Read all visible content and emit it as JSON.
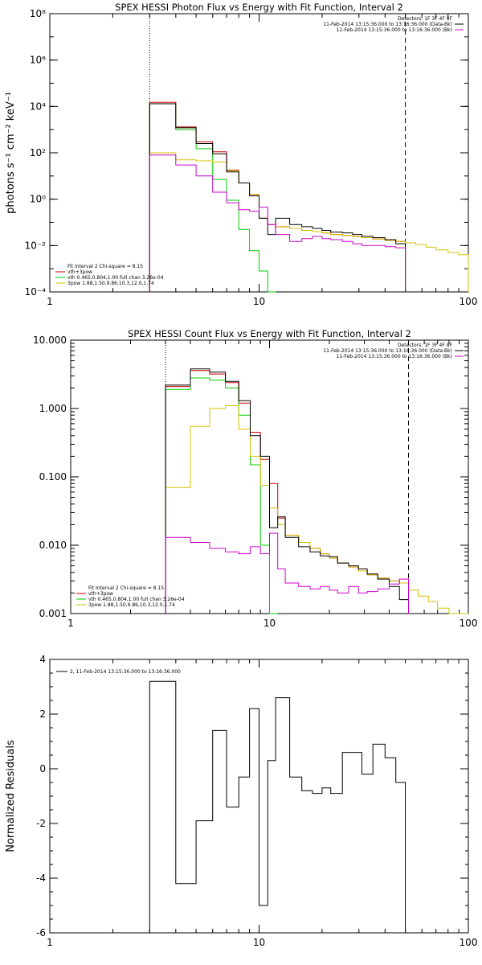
{
  "chart_data": [
    {
      "type": "line",
      "title": "SPEX HESSI Photon Flux vs Energy with Fit Function, Interval 2",
      "xlabel": "",
      "ylabel": "photons s⁻¹ cm⁻² keV⁻¹",
      "xscale": "log",
      "yscale": "log",
      "xlim": [
        1,
        100
      ],
      "ylim": [
        0.0001,
        100000000
      ],
      "x_ticks": [
        1,
        10,
        100
      ],
      "x_tick_labels": [
        "1",
        "10",
        "100"
      ],
      "y_ticks": [
        0.0001,
        0.01,
        1,
        100,
        10000,
        1000000,
        100000000
      ],
      "y_tick_labels": [
        "10⁻⁴",
        "10⁻²",
        "10⁰",
        "10²",
        "10⁴",
        "10⁶",
        "10⁸"
      ],
      "vlines": [
        {
          "x": 3,
          "style": "dotted"
        },
        {
          "x": 50,
          "style": "dashed"
        }
      ],
      "legend_topright": [
        "Detectors: 1F 3F 4F 8F",
        "11-Feb-2014 13:15:36.000 to 13:16:36.000 (Data-Bk)",
        "11-Feb-2014 13:15:36.000 to 13:16:36.000 (Bk)"
      ],
      "legend_bottomleft": [
        "Fit Interval 2   Chi-square = 8.15",
        "vth+3pow",
        "vth 0.465,0.804,1.00  full chan 3.26e-04",
        "3pow 1.88,1.50,9.86,10.3,12.0,1.74"
      ],
      "edges": [
        3,
        4,
        5,
        6,
        7,
        8,
        9,
        10,
        11,
        12,
        14,
        16,
        18,
        20,
        22,
        25,
        28,
        31,
        35,
        40,
        45,
        50,
        56,
        63,
        70,
        80,
        90,
        100
      ],
      "series": [
        {
          "name": "vth+3pow",
          "color": "#cc0000",
          "values": [
            15000,
            1300,
            300,
            110,
            18,
            5,
            1.6,
            0.15,
            0.08,
            0.065,
            0.055,
            0.045,
            0.04,
            0.035,
            0.03,
            0.027,
            0.024,
            0.022,
            0.019,
            0.017,
            0.015
          ]
        },
        {
          "name": "vth 0.465,0.804,1.00  full chan 3.26e-04",
          "color": "#00cc00",
          "values": [
            13000,
            1000,
            150,
            7,
            0.9,
            0.05,
            0.006,
            0.0008,
            0.0001
          ]
        },
        {
          "name": "3pow 1.88,1.50,9.86,10.3,12.0,1.74",
          "color": "#d4c000",
          "values": [
            100,
            50,
            45,
            40,
            17,
            5,
            1.6,
            0.15,
            0.08,
            0.065,
            0.055,
            0.045,
            0.04,
            0.035,
            0.03,
            0.027,
            0.024,
            0.022,
            0.019,
            0.017,
            0.015,
            0.013,
            0.011,
            0.0085,
            0.0065,
            0.005,
            0.004
          ]
        },
        {
          "name": "11-Feb-2014 13:15:36.000 to 13:16:36.000 (Data-Bk)",
          "color": "#000000",
          "values": [
            13000,
            1200,
            250,
            90,
            15,
            5,
            1.4,
            0.15,
            0.03,
            0.15,
            0.08,
            0.065,
            0.055,
            0.045,
            0.038,
            0.035,
            0.03,
            0.025,
            0.022,
            0.018,
            0.012
          ]
        },
        {
          "name": "11-Feb-2014 13:15:36.000 to 13:16:36.000 (Bk)",
          "color": "#cc00cc",
          "values": [
            80,
            30,
            10,
            2,
            0.7,
            0.35,
            0.3,
            0.45,
            0.08,
            0.03,
            0.015,
            0.02,
            0.025,
            0.02,
            0.018,
            0.015,
            0.012,
            0.01,
            0.01,
            0.009,
            0.008
          ]
        }
      ]
    },
    {
      "type": "line",
      "title": "SPEX HESSI Count Flux vs Energy with Fit Function, Interval 2",
      "xlabel": "",
      "ylabel": "",
      "xscale": "log",
      "yscale": "log",
      "xlim": [
        1,
        100
      ],
      "ylim": [
        0.001,
        10
      ],
      "x_ticks": [
        1,
        10,
        100
      ],
      "x_tick_labels": [
        "1",
        "10",
        "100"
      ],
      "y_ticks": [
        0.001,
        0.01,
        0.1,
        1,
        10
      ],
      "y_tick_labels": [
        "0.001",
        "0.010",
        "0.100",
        "1.000",
        "10.000"
      ],
      "vlines": [
        {
          "x": 3,
          "style": "dotted"
        },
        {
          "x": 50,
          "style": "dashed"
        }
      ],
      "legend_topright": [
        "Detectors: 1F 3F 4F 8F",
        "11-Feb-2014 13:15:36.000 to 13:16:36.000 (Data-Bk)",
        "11-Feb-2014 13:15:36.000 to 13:16:36.000 (Bk)"
      ],
      "legend_bottomleft": [
        "Fit Interval 2   Chi-square = 8.15",
        "vth+3pow",
        "vth 0.465,0.804,1.00  full chan 3.26e-04",
        "3pow 1.88,1.50,9.86,10.3,12.0,1.74"
      ],
      "edges": [
        3,
        4,
        5,
        6,
        7,
        8,
        9,
        10,
        11,
        12,
        14,
        16,
        18,
        20,
        22,
        25,
        28,
        31,
        35,
        40,
        45,
        50,
        56,
        63,
        70,
        80,
        90,
        100
      ],
      "series": [
        {
          "name": "vth+3pow",
          "color": "#cc0000",
          "values": [
            2.1,
            3.6,
            3.2,
            2.4,
            1.2,
            0.45,
            0.18,
            0.08,
            0.025,
            0.014,
            0.011,
            0.009,
            0.0075,
            0.0065,
            0.0055,
            0.0048,
            0.0042,
            0.0037,
            0.0033,
            0.003,
            0.0028
          ]
        },
        {
          "name": "vth 0.465,0.804,1.00  full chan 3.26e-04",
          "color": "#00cc00",
          "values": [
            1.9,
            2.8,
            2.6,
            2.0,
            0.8,
            0.15,
            0.01,
            0.0008
          ]
        },
        {
          "name": "3pow 1.88,1.50,9.86,10.3,12.0,1.74",
          "color": "#d4c000",
          "values": [
            0.07,
            0.55,
            1.0,
            1.1,
            0.5,
            0.2,
            0.075,
            0.035,
            0.02,
            0.014,
            0.011,
            0.009,
            0.0075,
            0.0065,
            0.0055,
            0.0048,
            0.0042,
            0.0037,
            0.0033,
            0.003,
            0.0028,
            0.0022,
            0.0018,
            0.0015,
            0.0012,
            0.001,
            0.0009
          ]
        },
        {
          "name": "11-Feb-2014 13:15:36.000 to 13:16:36.000 (Data-Bk)",
          "color": "#000000",
          "values": [
            2.2,
            3.8,
            3.4,
            2.5,
            1.3,
            0.4,
            0.2,
            0.018,
            0.026,
            0.013,
            0.0095,
            0.008,
            0.007,
            0.0068,
            0.0055,
            0.005,
            0.0045,
            0.0038,
            0.0032,
            0.0025,
            0.0016
          ]
        },
        {
          "name": "11-Feb-2014 13:15:36.000 to 13:16:36.000 (Bk)",
          "color": "#cc00cc",
          "values": [
            0.013,
            0.011,
            0.009,
            0.008,
            0.0075,
            0.0095,
            0.0075,
            0.015,
            0.0045,
            0.0028,
            0.0025,
            0.0023,
            0.0025,
            0.0022,
            0.002,
            0.0025,
            0.002,
            0.0021,
            0.0023,
            0.0027,
            0.0032
          ]
        }
      ]
    },
    {
      "type": "line",
      "title": "",
      "xlabel": "",
      "ylabel": "Normalized Residuals",
      "xscale": "log",
      "yscale": "linear",
      "xlim": [
        1,
        100
      ],
      "ylim": [
        -6,
        4
      ],
      "x_ticks": [
        1,
        10,
        100
      ],
      "x_tick_labels": [
        "1",
        "10",
        "100"
      ],
      "y_ticks": [
        -6,
        -4,
        -2,
        0,
        2,
        4
      ],
      "y_tick_labels": [
        "-6",
        "-4",
        "-2",
        "0",
        "2",
        "4"
      ],
      "legend_topleft": [
        "2, 11-Feb-2014 13:15:36.000 to 13:16:36.000"
      ],
      "edges": [
        3,
        4,
        5,
        6,
        7,
        8,
        9,
        10,
        11,
        12,
        14,
        16,
        18,
        20,
        22,
        25,
        28,
        31,
        35,
        40,
        45,
        50
      ],
      "series": [
        {
          "name": "2, 11-Feb-2014 13:15:36.000 to 13:16:36.000",
          "color": "#000000",
          "values": [
            3.2,
            -4.2,
            -1.9,
            1.4,
            -1.4,
            -0.3,
            2.2,
            -5.0,
            0.3,
            2.6,
            -0.3,
            -0.8,
            -0.9,
            -0.7,
            -0.9,
            0.6,
            0.6,
            -0.2,
            0.9,
            0.4,
            -0.5
          ]
        }
      ]
    }
  ]
}
